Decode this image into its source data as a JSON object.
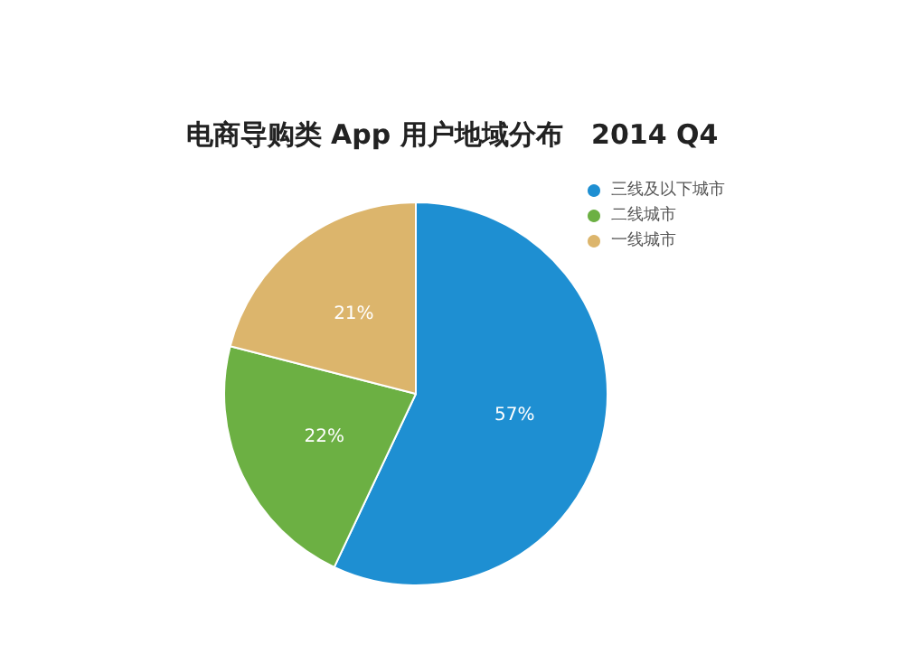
{
  "chart_data": {
    "type": "pie",
    "title": "电商导购类 App 用户地域分布   2014 Q4",
    "categories": [
      "三线及以下城市",
      "二线城市",
      "一线城市"
    ],
    "values": [
      57,
      22,
      21
    ],
    "colors": [
      "#1e8fd2",
      "#6cb043",
      "#dcb56c"
    ],
    "value_labels": [
      "57%",
      "22%",
      "21%"
    ],
    "legend": "top right"
  }
}
